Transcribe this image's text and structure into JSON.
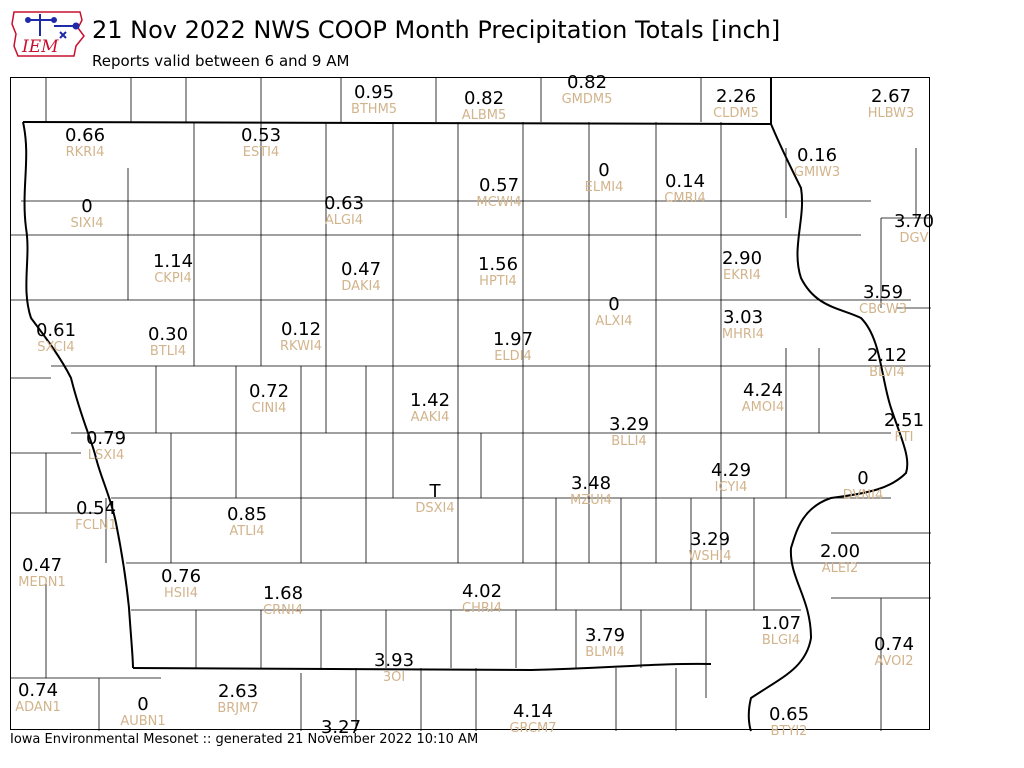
{
  "header": {
    "logo_text": "IEM",
    "title": "21 Nov 2022 NWS COOP Month Precipitation Totals [inch]",
    "subtitle": "Reports valid between 6 and 9 AM"
  },
  "footer": {
    "text": "Iowa Environmental Mesonet :: generated 21 November 2022 10:10 AM"
  },
  "colors": {
    "value_text": "#000000",
    "station_id_text": "#d2b48c",
    "county_lines": "#000000",
    "logo_blue": "#1e2aa8",
    "logo_red": "#c8102e"
  },
  "stations": [
    {
      "id": "BTHM5",
      "value": "0.95"
    },
    {
      "id": "ALBM5",
      "value": "0.82"
    },
    {
      "id": "GMDM5",
      "value": "0.82"
    },
    {
      "id": "CLDM5",
      "value": "2.26"
    },
    {
      "id": "HLBW3",
      "value": "2.67"
    },
    {
      "id": "RKRI4",
      "value": "0.66"
    },
    {
      "id": "ESTI4",
      "value": "0.53"
    },
    {
      "id": "GMIW3",
      "value": "0.16"
    },
    {
      "id": "ELMI4",
      "value": "0"
    },
    {
      "id": "CMRI4",
      "value": "0.14"
    },
    {
      "id": "MCWI4",
      "value": "0.57"
    },
    {
      "id": "ALGI4",
      "value": "0.63"
    },
    {
      "id": "SIXI4",
      "value": "0"
    },
    {
      "id": "DGV",
      "value": "3.70"
    },
    {
      "id": "EKRI4",
      "value": "2.90"
    },
    {
      "id": "CKPI4",
      "value": "1.14"
    },
    {
      "id": "HPTI4",
      "value": "1.56"
    },
    {
      "id": "DAKI4",
      "value": "0.47"
    },
    {
      "id": "CBCW3",
      "value": "3.59"
    },
    {
      "id": "ALXI4",
      "value": "0"
    },
    {
      "id": "MHRI4",
      "value": "3.03"
    },
    {
      "id": "SXCI4",
      "value": "0.61"
    },
    {
      "id": "BTLI4",
      "value": "0.30"
    },
    {
      "id": "RKWI4",
      "value": "0.12"
    },
    {
      "id": "ELDI4",
      "value": "1.97"
    },
    {
      "id": "BLVI4",
      "value": "2.12"
    },
    {
      "id": "CINI4",
      "value": "0.72"
    },
    {
      "id": "AMOI4",
      "value": "4.24"
    },
    {
      "id": "AAKI4",
      "value": "1.42"
    },
    {
      "id": "FTI",
      "value": "2.51"
    },
    {
      "id": "BLLI4",
      "value": "3.29"
    },
    {
      "id": "LSXI4",
      "value": "0.79"
    },
    {
      "id": "ICYI4",
      "value": "4.29"
    },
    {
      "id": "DVNI4",
      "value": "0"
    },
    {
      "id": "DSXI4",
      "value": "T"
    },
    {
      "id": "MZUI4",
      "value": "3.48"
    },
    {
      "id": "FCLN1",
      "value": "0.54"
    },
    {
      "id": "ATLI4",
      "value": "0.85"
    },
    {
      "id": "WSHI4",
      "value": "3.29"
    },
    {
      "id": "ALEI2",
      "value": "2.00"
    },
    {
      "id": "MEDN1",
      "value": "0.47"
    },
    {
      "id": "HSII4",
      "value": "0.76"
    },
    {
      "id": "CRNI4",
      "value": "1.68"
    },
    {
      "id": "CHRI4",
      "value": "4.02"
    },
    {
      "id": "BLGI4",
      "value": "1.07"
    },
    {
      "id": "BLMI4",
      "value": "3.79"
    },
    {
      "id": "AVOI2",
      "value": "0.74"
    },
    {
      "id": "3OI",
      "value": "3.93"
    },
    {
      "id": "ADAN1",
      "value": "0.74"
    },
    {
      "id": "AUBN1",
      "value": "0"
    },
    {
      "id": "BRJM7",
      "value": "2.63"
    },
    {
      "id": "GRCM7",
      "value": "4.14"
    },
    {
      "id": "BTYI2",
      "value": "0.65"
    },
    {
      "id": "",
      "value": "3.27"
    }
  ]
}
